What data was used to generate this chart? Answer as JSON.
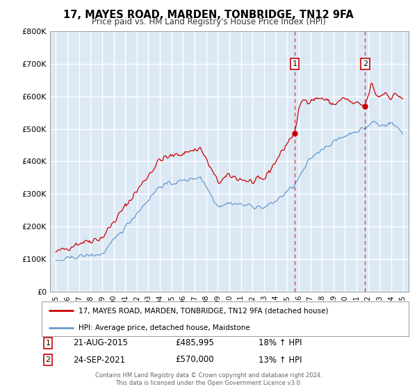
{
  "title": "17, MAYES ROAD, MARDEN, TONBRIDGE, TN12 9FA",
  "subtitle": "Price paid vs. HM Land Registry's House Price Index (HPI)",
  "ylabel_ticks": [
    "£0",
    "£100K",
    "£200K",
    "£300K",
    "£400K",
    "£500K",
    "£600K",
    "£700K",
    "£800K"
  ],
  "ylim": [
    0,
    800000
  ],
  "xlim_start": 1994.5,
  "xlim_end": 2025.5,
  "background_color": "#dce9f5",
  "plot_bg_color": "#dce9f5",
  "grid_color": "#ffffff",
  "red_line_color": "#cc0000",
  "blue_line_color": "#6699cc",
  "marker1_x": 2015.64,
  "marker1_y": 485995,
  "marker1_label": "1",
  "marker1_date": "21-AUG-2015",
  "marker1_price": "£485,995",
  "marker1_hpi": "18% ↑ HPI",
  "marker2_x": 2021.73,
  "marker2_y": 570000,
  "marker2_label": "2",
  "marker2_date": "24-SEP-2021",
  "marker2_price": "£570,000",
  "marker2_hpi": "13% ↑ HPI",
  "legend_line1": "17, MAYES ROAD, MARDEN, TONBRIDGE, TN12 9FA (detached house)",
  "legend_line2": "HPI: Average price, detached house, Maidstone",
  "footnote": "Contains HM Land Registry data © Crown copyright and database right 2024.\nThis data is licensed under the Open Government Licence v3.0."
}
